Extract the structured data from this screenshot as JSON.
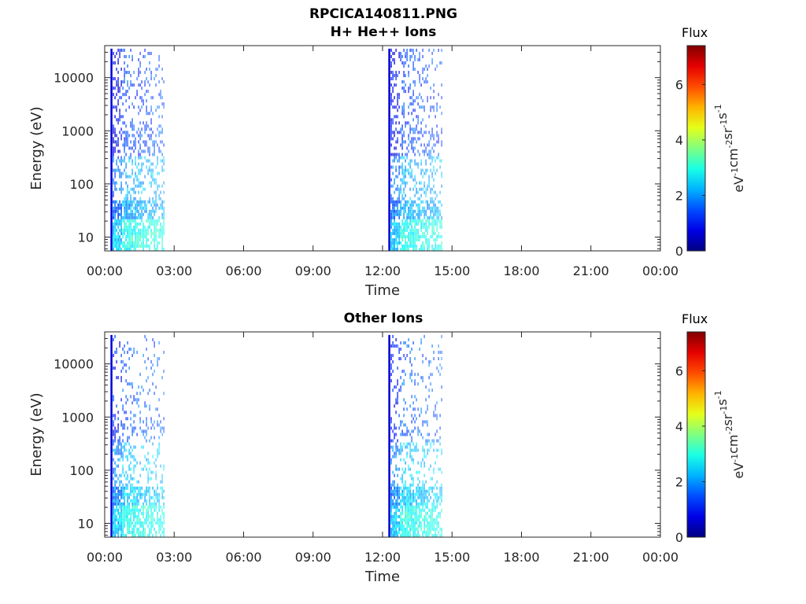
{
  "figure": {
    "title": "RPCICA140811.PNG",
    "colors": {
      "axis": "#262626",
      "background": "#ffffff"
    }
  },
  "colorbar": {
    "label": "Flux",
    "unit_parts": [
      "eV",
      "-1",
      "cm",
      "-2",
      "sr",
      "-1",
      "s",
      "-1"
    ],
    "ticks": [
      "0",
      "2",
      "4",
      "6"
    ],
    "range": [
      0,
      7.4
    ],
    "colormap": "jet"
  },
  "chart_data": [
    {
      "type": "heatmap",
      "title": "H+ He++ Ions",
      "xlabel": "Time",
      "ylabel": "Energy (eV)",
      "xticks": [
        "00:00",
        "03:00",
        "06:00",
        "09:00",
        "12:00",
        "15:00",
        "18:00",
        "21:00",
        "00:00"
      ],
      "xlim_hours": [
        0,
        24
      ],
      "yscale": "log",
      "yticks": [
        "10",
        "100",
        "1000",
        "10000"
      ],
      "ylim": [
        5.5,
        40000
      ],
      "bursts": [
        {
          "start_hour": 0.25,
          "end_hour": 2.65,
          "max_energy": 35000
        },
        {
          "start_hour": 12.25,
          "end_hour": 14.65,
          "max_energy": 35000
        }
      ],
      "flux_levels": {
        "edge": 0.6,
        "high_energy": 1.4,
        "mid_energy": 2.2,
        "low_energy": 2.9
      }
    },
    {
      "type": "heatmap",
      "title": "Other Ions",
      "xlabel": "Time",
      "ylabel": "Energy (eV)",
      "xticks": [
        "00:00",
        "03:00",
        "06:00",
        "09:00",
        "12:00",
        "15:00",
        "18:00",
        "21:00",
        "00:00"
      ],
      "xlim_hours": [
        0,
        24
      ],
      "yscale": "log",
      "yticks": [
        "10",
        "100",
        "1000",
        "10000"
      ],
      "ylim": [
        5.5,
        40000
      ],
      "bursts": [
        {
          "start_hour": 0.25,
          "end_hour": 2.65,
          "max_energy": 35000
        },
        {
          "start_hour": 12.25,
          "end_hour": 14.65,
          "max_energy": 35000
        }
      ],
      "flux_levels": {
        "edge": 0.6,
        "high_energy": 1.6,
        "mid_energy": 2.4,
        "low_energy": 2.9
      }
    }
  ]
}
